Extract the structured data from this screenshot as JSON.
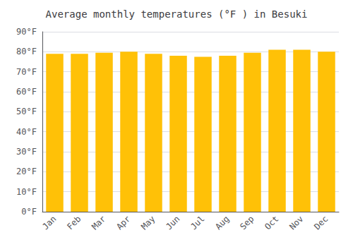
{
  "chart_data": {
    "type": "bar",
    "title": "Average monthly temperatures (°F ) in Besuki",
    "categories": [
      "Jan",
      "Feb",
      "Mar",
      "Apr",
      "May",
      "Jun",
      "Jul",
      "Aug",
      "Sep",
      "Oct",
      "Nov",
      "Dec"
    ],
    "values": [
      79,
      79,
      79.5,
      80,
      79,
      78,
      77.5,
      78,
      79.5,
      81,
      81,
      80
    ],
    "color": "#FFC107",
    "ylim": [
      0,
      90
    ],
    "yticks": [
      {
        "value": 0,
        "label": "0°F"
      },
      {
        "value": 10,
        "label": "10°F"
      },
      {
        "value": 20,
        "label": "20°F"
      },
      {
        "value": 30,
        "label": "30°F"
      },
      {
        "value": 40,
        "label": "40°F"
      },
      {
        "value": 50,
        "label": "50°F"
      },
      {
        "value": 60,
        "label": "60°F"
      },
      {
        "value": 70,
        "label": "70°F"
      },
      {
        "value": 80,
        "label": "80°F"
      },
      {
        "value": 90,
        "label": "90°F"
      }
    ],
    "grid": true
  }
}
